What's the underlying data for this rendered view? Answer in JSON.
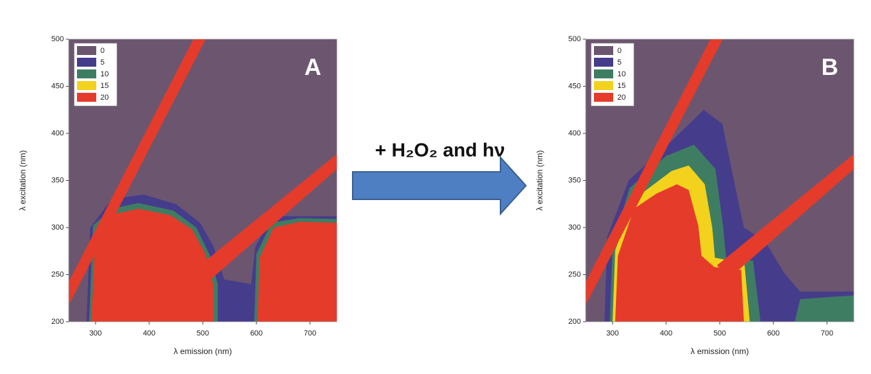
{
  "annotation": "+ H₂O₂ and hν",
  "chart_data": [
    {
      "type": "contour",
      "title": "A",
      "xlabel": "λ emission (nm)",
      "ylabel": "λ excitation (nm)",
      "xlim": [
        250,
        750
      ],
      "ylim": [
        200,
        500
      ],
      "xticks": [
        300,
        400,
        500,
        600,
        700
      ],
      "yticks": [
        200,
        250,
        300,
        350,
        400,
        450,
        500
      ],
      "levels": [
        0,
        5,
        10,
        15,
        20
      ],
      "colors": [
        "#6c566f",
        "#463c8c",
        "#3f7d63",
        "#f2d21c",
        "#e53b2b"
      ],
      "legend": "upper left",
      "regions": [
        {
          "level": 5,
          "points": [
            [
              283,
              200
            ],
            [
              290,
              300
            ],
            [
              330,
              330
            ],
            [
              390,
              335
            ],
            [
              450,
              325
            ],
            [
              495,
              305
            ],
            [
              520,
              280
            ],
            [
              540,
              245
            ],
            [
              590,
              240
            ],
            [
              598,
              280
            ],
            [
              630,
              312
            ],
            [
              750,
              312
            ],
            [
              750,
              200
            ]
          ]
        },
        {
          "level": 10,
          "points": [
            [
              288,
              200
            ],
            [
              295,
              302
            ],
            [
              330,
              320
            ],
            [
              380,
              326
            ],
            [
              445,
              318
            ],
            [
              488,
              300
            ],
            [
              512,
              272
            ],
            [
              528,
              240
            ],
            [
              528,
              200
            ]
          ]
        },
        {
          "level": 10,
          "points": [
            [
              596,
              200
            ],
            [
              600,
              272
            ],
            [
              628,
              305
            ],
            [
              680,
              310
            ],
            [
              750,
              309
            ],
            [
              750,
              200
            ]
          ]
        },
        {
          "level": 20,
          "points": [
            [
              292,
              200
            ],
            [
              300,
              298
            ],
            [
              332,
              314
            ],
            [
              380,
              320
            ],
            [
              440,
              313
            ],
            [
              480,
              298
            ],
            [
              505,
              272
            ],
            [
              520,
              238
            ],
            [
              520,
              200
            ]
          ]
        },
        {
          "level": 20,
          "points": [
            [
              602,
              200
            ],
            [
              606,
              268
            ],
            [
              632,
              300
            ],
            [
              680,
              306
            ],
            [
              750,
              305
            ],
            [
              750,
              200
            ]
          ]
        },
        {
          "level": 20,
          "points": [
            [
              230,
              220
            ],
            [
              487,
              505
            ],
            [
              510,
              505
            ],
            [
              252,
              220
            ]
          ]
        },
        {
          "level": 20,
          "points": [
            [
              495,
              260
            ],
            [
              750,
              378
            ],
            [
              750,
              362
            ],
            [
              515,
              245
            ]
          ]
        }
      ]
    },
    {
      "type": "contour",
      "title": "B",
      "xlabel": "λ emission (nm)",
      "ylabel": "λ excitation (nm)",
      "xlim": [
        250,
        750
      ],
      "ylim": [
        200,
        500
      ],
      "xticks": [
        300,
        400,
        500,
        600,
        700
      ],
      "yticks": [
        200,
        250,
        300,
        350,
        400,
        450,
        500
      ],
      "levels": [
        0,
        5,
        10,
        15,
        20
      ],
      "colors": [
        "#6c566f",
        "#463c8c",
        "#3f7d63",
        "#f2d21c",
        "#e53b2b"
      ],
      "legend": "upper left",
      "regions": [
        {
          "level": 5,
          "points": [
            [
              285,
              200
            ],
            [
              290,
              290
            ],
            [
              330,
              350
            ],
            [
              410,
              392
            ],
            [
              470,
              425
            ],
            [
              505,
              410
            ],
            [
              530,
              340
            ],
            [
              545,
              300
            ],
            [
              585,
              285
            ],
            [
              620,
              252
            ],
            [
              650,
              232
            ],
            [
              750,
              232
            ],
            [
              750,
              200
            ]
          ]
        },
        {
          "level": 10,
          "points": [
            [
              640,
              200
            ],
            [
              650,
              224
            ],
            [
              750,
              228
            ],
            [
              750,
              200
            ]
          ]
        },
        {
          "level": 10,
          "points": [
            [
              295,
              200
            ],
            [
              300,
              282
            ],
            [
              332,
              342
            ],
            [
              400,
              376
            ],
            [
              452,
              388
            ],
            [
              492,
              362
            ],
            [
              506,
              302
            ],
            [
              512,
              266
            ],
            [
              562,
              265
            ],
            [
              576,
              200
            ]
          ]
        },
        {
          "level": 15,
          "points": [
            [
              300,
              200
            ],
            [
              305,
              276
            ],
            [
              340,
              330
            ],
            [
              410,
              360
            ],
            [
              442,
              366
            ],
            [
              472,
              346
            ],
            [
              486,
              300
            ],
            [
              491,
              268
            ],
            [
              546,
              262
            ],
            [
              556,
              200
            ]
          ]
        },
        {
          "level": 20,
          "points": [
            [
              305,
              200
            ],
            [
              310,
              270
            ],
            [
              340,
              320
            ],
            [
              382,
              336
            ],
            [
              420,
              346
            ],
            [
              442,
              340
            ],
            [
              460,
              302
            ],
            [
              466,
              270
            ],
            [
              490,
              258
            ],
            [
              540,
              255
            ],
            [
              545,
              200
            ]
          ]
        },
        {
          "level": 20,
          "points": [
            [
              230,
              220
            ],
            [
              487,
              505
            ],
            [
              510,
              505
            ],
            [
              252,
              220
            ]
          ]
        },
        {
          "level": 20,
          "points": [
            [
              495,
              260
            ],
            [
              750,
              378
            ],
            [
              750,
              362
            ],
            [
              515,
              245
            ]
          ]
        }
      ]
    }
  ]
}
